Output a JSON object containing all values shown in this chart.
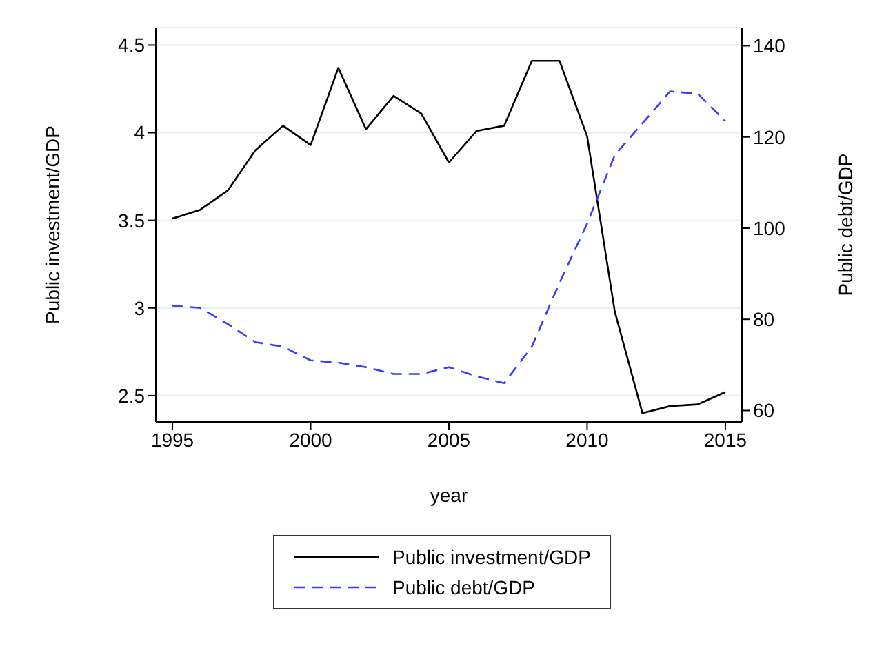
{
  "chart_data": {
    "type": "line",
    "xlabel": "year",
    "ylabel": "Public investment/GDP",
    "y2label": "Public debt/GDP",
    "x": [
      1995,
      1996,
      1997,
      1998,
      1999,
      2000,
      2001,
      2002,
      2003,
      2004,
      2005,
      2006,
      2007,
      2008,
      2009,
      2010,
      2011,
      2012,
      2013,
      2014,
      2015
    ],
    "series": [
      {
        "name": "Public investment/GDP",
        "color": "#000000",
        "line_style": "solid",
        "values": [
          3.51,
          3.56,
          3.67,
          3.9,
          4.04,
          3.93,
          4.37,
          4.02,
          4.21,
          4.11,
          3.83,
          4.01,
          4.04,
          4.41,
          4.41,
          3.98,
          2.98,
          2.4,
          2.44,
          2.45,
          2.52
        ]
      },
      {
        "name": "Public debt/GDP",
        "color": "#3a3aff",
        "line_style": "dashed",
        "axis": "y2",
        "values": [
          83,
          82.5,
          79,
          75,
          74,
          71,
          70.5,
          69.5,
          68,
          68,
          69.5,
          67.5,
          66,
          74,
          88,
          101,
          116,
          123,
          130,
          129.5,
          123.5
        ]
      }
    ],
    "xlim": [
      1994.4,
      2015.6
    ],
    "xticks": [
      1995,
      2000,
      2005,
      2010,
      2015
    ],
    "ylim": [
      2.35,
      4.6
    ],
    "yticks": [
      2.5,
      3,
      3.5,
      4,
      4.5
    ],
    "y2lim": [
      57.5,
      144
    ],
    "y2ticks": [
      60,
      80,
      100,
      120,
      140
    ],
    "grid": "y",
    "legend": "bottom",
    "marker": "none"
  }
}
